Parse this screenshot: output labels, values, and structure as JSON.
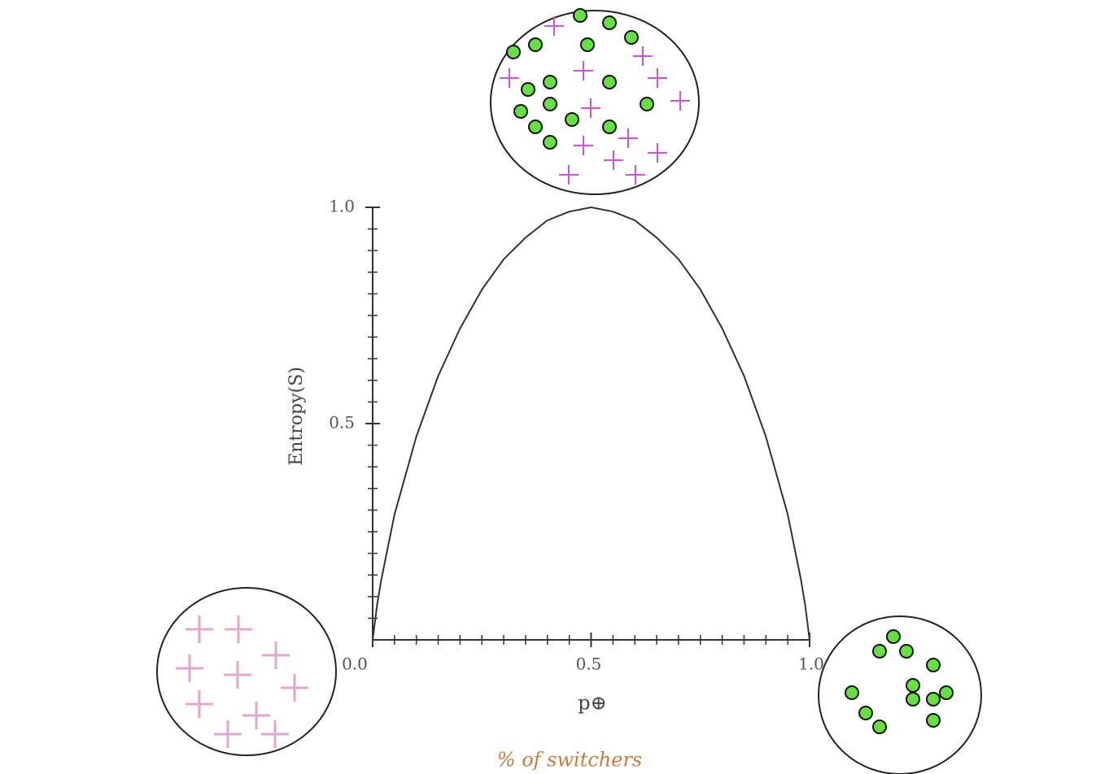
{
  "chart_data": {
    "type": "line",
    "y_label": "Entropy(S)",
    "x_label": "p⊕",
    "caption": "% of switchers",
    "x": [
      0,
      0.01,
      0.02,
      0.05,
      0.1,
      0.15,
      0.2,
      0.25,
      0.3,
      0.35,
      0.4,
      0.45,
      0.5,
      0.55,
      0.6,
      0.65,
      0.7,
      0.75,
      0.8,
      0.85,
      0.9,
      0.95,
      0.98,
      0.99,
      1
    ],
    "values": [
      0,
      0.08,
      0.14,
      0.29,
      0.47,
      0.61,
      0.72,
      0.81,
      0.88,
      0.93,
      0.97,
      0.99,
      1.0,
      0.99,
      0.97,
      0.93,
      0.88,
      0.81,
      0.72,
      0.61,
      0.47,
      0.29,
      0.14,
      0.08,
      0
    ],
    "color": "#333333",
    "xlim": [
      0,
      1
    ],
    "ylim": [
      0,
      1
    ],
    "xticks": [
      {
        "value": 0,
        "label": "0.0"
      },
      {
        "value": 0.5,
        "label": "0.5"
      },
      {
        "value": 1,
        "label": "1.0"
      }
    ],
    "yticks": [
      {
        "value": 0.5,
        "label": "0.5"
      },
      {
        "value": 1,
        "label": "1.0"
      }
    ],
    "xticks_minor": [
      0.05,
      0.1,
      0.15,
      0.2,
      0.25,
      0.3,
      0.35,
      0.4,
      0.45,
      0.55,
      0.6,
      0.65,
      0.7,
      0.75,
      0.8,
      0.85,
      0.9,
      0.95
    ],
    "yticks_minor": [
      0.05,
      0.1,
      0.15,
      0.2,
      0.25,
      0.3,
      0.35,
      0.4,
      0.45,
      0.55,
      0.6,
      0.65,
      0.7,
      0.75,
      0.8,
      0.85,
      0.9,
      0.95
    ]
  }
}
